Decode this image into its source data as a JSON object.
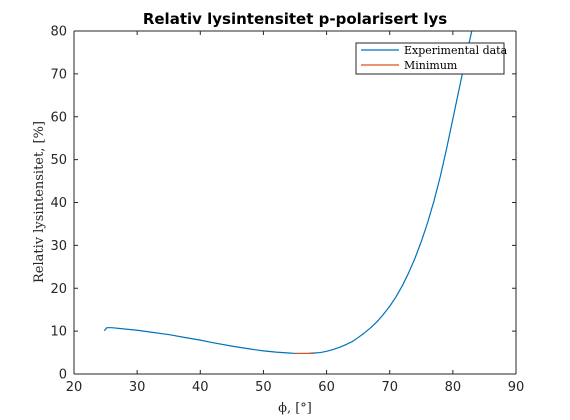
{
  "chart_data": {
    "type": "line",
    "title": "Relativ lysintensitet p-polarisert lys",
    "xlabel": "ϕ, [°]",
    "ylabel": "Relativ lysintensitet, [%]",
    "xlim": [
      20,
      90
    ],
    "ylim": [
      0,
      80
    ],
    "xticks": [
      "20",
      "30",
      "40",
      "50",
      "60",
      "70",
      "80",
      "90"
    ],
    "yticks": [
      "0",
      "10",
      "20",
      "30",
      "40",
      "50",
      "60",
      "70",
      "80"
    ],
    "grid": false,
    "legend_position": "top-right",
    "series": [
      {
        "name": "Experimental data",
        "color": "#0072BD",
        "x": [
          24.8,
          25.2,
          26,
          28,
          30,
          32,
          35,
          38,
          40,
          42,
          45,
          48,
          50,
          52,
          54,
          55,
          56,
          57,
          58,
          59,
          60,
          61,
          62,
          63,
          64,
          65,
          66,
          67,
          68,
          69,
          70,
          71,
          72,
          73,
          74,
          75,
          76,
          77,
          78,
          79,
          80,
          81,
          82,
          83
        ],
        "y": [
          10.1,
          10.8,
          10.8,
          10.5,
          10.2,
          9.8,
          9.2,
          8.4,
          7.9,
          7.3,
          6.5,
          5.8,
          5.4,
          5.1,
          4.9,
          4.8,
          4.8,
          4.8,
          4.9,
          5.0,
          5.3,
          5.7,
          6.2,
          6.8,
          7.5,
          8.5,
          9.6,
          10.8,
          12.2,
          13.9,
          15.8,
          18.0,
          20.6,
          23.6,
          27.0,
          30.9,
          35.3,
          40.3,
          46.0,
          52.5,
          59.5,
          66.5,
          73.5,
          80.0
        ]
      },
      {
        "name": "Minimum",
        "color": "#D95319",
        "x": [
          55,
          58
        ],
        "y": [
          4.8,
          4.8
        ]
      }
    ]
  }
}
